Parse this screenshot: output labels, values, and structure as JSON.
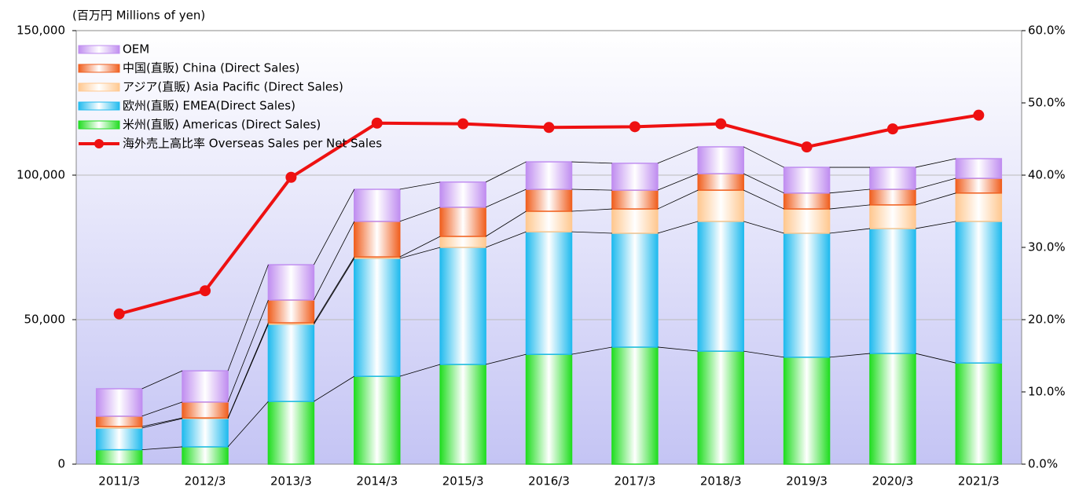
{
  "chart_data": {
    "type": "bar",
    "y_label": "(百万円  Millions of yen)",
    "categories": [
      "2011/3",
      "2012/3",
      "2013/3",
      "2014/3",
      "2015/3",
      "2016/3",
      "2017/3",
      "2018/3",
      "2019/3",
      "2020/3",
      "2021/3"
    ],
    "stacked": true,
    "series": [
      {
        "name": "米州(直販) Americas (Direct Sales)",
        "color": "#22dd22",
        "values": [
          5000,
          6000,
          21700,
          30400,
          34500,
          38000,
          40500,
          39100,
          37000,
          38300,
          35000
        ]
      },
      {
        "name": "欧州(直販) EMEA(Direct Sales)",
        "color": "#22bbee",
        "values": [
          7500,
          9800,
          26700,
          40800,
          40500,
          42400,
          39400,
          44900,
          42900,
          43200,
          49000
        ]
      },
      {
        "name": "アジア(直販) Asia Pacific (Direct Sales)",
        "color": "#ffc890",
        "values": [
          500,
          200,
          500,
          500,
          3800,
          7100,
          8400,
          10800,
          8400,
          8200,
          9800
        ]
      },
      {
        "name": "中国(直販) China (Direct Sales)",
        "color": "#f06020",
        "values": [
          3600,
          5500,
          7900,
          12300,
          10100,
          7600,
          6500,
          5700,
          5500,
          5400,
          5100
        ]
      },
      {
        "name": "OEM",
        "color": "#c08ef0",
        "values": [
          9500,
          10800,
          12200,
          11100,
          8700,
          9500,
          9300,
          9300,
          8900,
          7600,
          6800
        ]
      },
      {
        "name": "海外売上高比率 Overseas Sales per Net Sales",
        "color": "#ee1111",
        "type": "line",
        "axis": "y2",
        "values": [
          20.8,
          24.0,
          39.7,
          47.2,
          47.1,
          46.6,
          46.7,
          47.1,
          43.9,
          46.4,
          48.3
        ]
      }
    ],
    "ylim": [
      0,
      150000
    ],
    "yticks": [
      0,
      {
        "value": 50000,
        "label": "50,000"
      },
      {
        "value": 100000,
        "label": "100,000"
      },
      {
        "value": 150000,
        "label": "150,000"
      }
    ],
    "y2lim": [
      0,
      60
    ],
    "y2ticks": [
      {
        "value": 0,
        "label": "0.0%"
      },
      {
        "value": 10,
        "label": "10.0%"
      },
      {
        "value": 20,
        "label": "20.0%"
      },
      {
        "value": 30,
        "label": "30.0%"
      },
      {
        "value": 40,
        "label": "40.0%"
      },
      {
        "value": 50,
        "label": "50.0%"
      },
      {
        "value": 60,
        "label": "60.0%"
      }
    ],
    "grid": true,
    "legend": "upper left"
  }
}
